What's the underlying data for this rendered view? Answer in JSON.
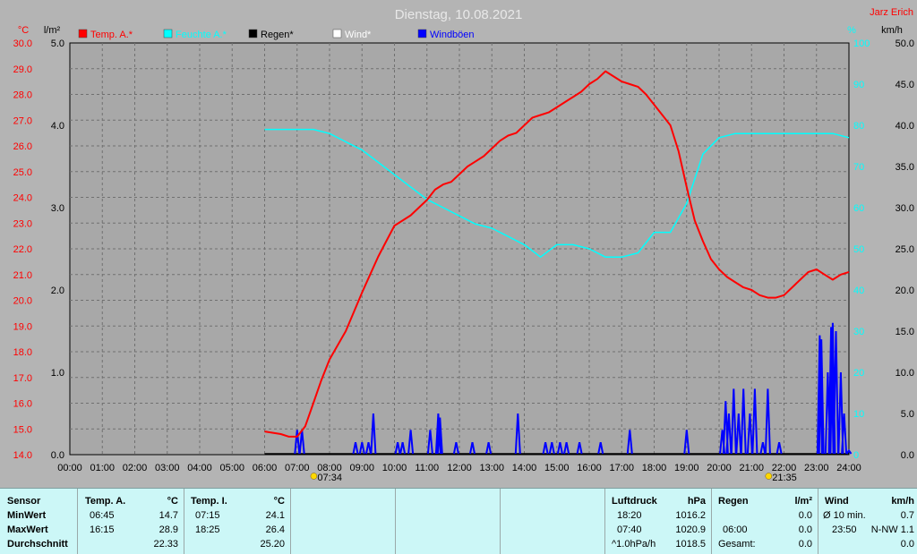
{
  "header": {
    "title": "Dienstag, 10.08.2021",
    "author": "Jarz Erich"
  },
  "legend": [
    {
      "label": "Temp. A.*",
      "color": "#ff0000"
    },
    {
      "label": "Feuchte A.*",
      "color": "#00ffff"
    },
    {
      "label": "Regen*",
      "color": "#000000"
    },
    {
      "label": "Wind*",
      "color": "#ffffff"
    },
    {
      "label": "Windböen",
      "color": "#0000ff"
    }
  ],
  "chart_data": {
    "type": "line",
    "title": "Dienstag, 10.08.2021",
    "x_ticks": [
      "00:00",
      "01:00",
      "02:00",
      "03:00",
      "04:00",
      "05:00",
      "06:00",
      "07:00",
      "08:00",
      "09:00",
      "10:00",
      "11:00",
      "12:00",
      "13:00",
      "14:00",
      "15:00",
      "16:00",
      "17:00",
      "18:00",
      "19:00",
      "20:00",
      "21:00",
      "22:00",
      "23:00",
      "24:00"
    ],
    "grid": true,
    "axes": {
      "temp": {
        "unit": "°C",
        "min": 14.0,
        "max": 30.0,
        "ticks": [
          "14.0",
          "15.0",
          "16.0",
          "17.0",
          "18.0",
          "19.0",
          "20.0",
          "21.0",
          "22.0",
          "23.0",
          "24.0",
          "25.0",
          "26.0",
          "27.0",
          "28.0",
          "29.0",
          "30.0"
        ]
      },
      "rain": {
        "unit": "l/m²",
        "min": 0.0,
        "max": 5.0,
        "ticks": [
          "0.0",
          "1.0",
          "2.0",
          "3.0",
          "4.0",
          "5.0"
        ]
      },
      "humidity": {
        "unit": "%",
        "min": 0,
        "max": 100,
        "ticks": [
          "0",
          "10",
          "20",
          "30",
          "40",
          "50",
          "60",
          "70",
          "80",
          "90",
          "100"
        ]
      },
      "wind": {
        "unit": "km/h",
        "min": 0.0,
        "max": 50.0,
        "ticks": [
          "0.0",
          "5.0",
          "10.0",
          "15.0",
          "20.0",
          "25.0",
          "30.0",
          "35.0",
          "40.0",
          "45.0",
          "50.0"
        ]
      }
    },
    "sun_markers": [
      {
        "time": "07:34",
        "hour": 7.57
      },
      {
        "time": "21:35",
        "hour": 21.58
      }
    ],
    "series": [
      {
        "name": "Temp. A.*",
        "axis": "temp",
        "color": "#ff0000",
        "x": [
          6.0,
          6.5,
          6.75,
          7.0,
          7.25,
          7.5,
          7.75,
          8.0,
          8.5,
          9.0,
          9.25,
          9.5,
          9.75,
          10.0,
          10.25,
          10.5,
          10.75,
          11.0,
          11.25,
          11.5,
          11.75,
          12.0,
          12.25,
          12.5,
          12.75,
          13.0,
          13.25,
          13.5,
          13.75,
          14.0,
          14.25,
          14.5,
          14.75,
          15.0,
          15.25,
          15.5,
          15.75,
          16.0,
          16.25,
          16.5,
          16.75,
          17.0,
          17.25,
          17.5,
          17.75,
          18.0,
          18.25,
          18.5,
          18.75,
          19.0,
          19.25,
          19.5,
          19.75,
          20.0,
          20.25,
          20.5,
          20.75,
          21.0,
          21.25,
          21.5,
          21.75,
          22.0,
          22.25,
          22.5,
          22.75,
          23.0,
          23.25,
          23.5,
          23.75,
          24.0
        ],
        "y": [
          14.9,
          14.8,
          14.7,
          14.7,
          15.1,
          16.0,
          16.9,
          17.7,
          18.8,
          20.3,
          21.0,
          21.7,
          22.3,
          22.9,
          23.1,
          23.3,
          23.6,
          23.9,
          24.3,
          24.5,
          24.6,
          24.9,
          25.2,
          25.4,
          25.6,
          25.9,
          26.2,
          26.4,
          26.5,
          26.8,
          27.1,
          27.2,
          27.3,
          27.5,
          27.7,
          27.9,
          28.1,
          28.4,
          28.6,
          28.9,
          28.7,
          28.5,
          28.4,
          28.3,
          28.0,
          27.6,
          27.2,
          26.8,
          25.8,
          24.4,
          23.1,
          22.3,
          21.6,
          21.2,
          20.9,
          20.7,
          20.5,
          20.4,
          20.2,
          20.1,
          20.1,
          20.2,
          20.5,
          20.8,
          21.1,
          21.2,
          21.0,
          20.8,
          21.0,
          21.1
        ]
      },
      {
        "name": "Feuchte A.*",
        "axis": "humidity",
        "color": "#00ffff",
        "x": [
          6.0,
          6.5,
          7.0,
          7.5,
          8.0,
          8.5,
          9.0,
          9.5,
          10.0,
          10.5,
          11.0,
          11.5,
          12.0,
          12.5,
          13.0,
          13.5,
          14.0,
          14.5,
          15.0,
          15.5,
          16.0,
          16.5,
          17.0,
          17.5,
          18.0,
          18.5,
          19.0,
          19.5,
          20.0,
          20.5,
          21.0,
          21.5,
          22.0,
          22.5,
          23.0,
          23.5,
          24.0
        ],
        "y": [
          79,
          79,
          79,
          79,
          78,
          76,
          74,
          71,
          68,
          65,
          62,
          60,
          58,
          56,
          55,
          53,
          51,
          48,
          51,
          51,
          50,
          48,
          48,
          49,
          54,
          54,
          61,
          73,
          77,
          78,
          78,
          78,
          78,
          78,
          78,
          78,
          77
        ]
      },
      {
        "name": "Windböen",
        "axis": "wind",
        "color": "#0000ff",
        "style": "spikes",
        "x": [
          7.0,
          7.15,
          8.8,
          9.0,
          9.2,
          9.35,
          10.1,
          10.25,
          10.5,
          11.1,
          11.35,
          11.4,
          11.9,
          12.4,
          12.9,
          13.8,
          14.65,
          14.85,
          15.1,
          15.3,
          15.7,
          16.35,
          17.25,
          19.0,
          20.1,
          20.2,
          20.3,
          20.45,
          20.6,
          20.75,
          20.95,
          21.1,
          21.35,
          21.5,
          21.85,
          23.1,
          23.15,
          23.35,
          23.45,
          23.5,
          23.6,
          23.75,
          23.85,
          24.0
        ],
        "y": [
          3.0,
          3.0,
          1.5,
          1.5,
          1.5,
          5.0,
          1.5,
          1.5,
          3.0,
          3.0,
          5.0,
          4.5,
          1.5,
          1.5,
          1.5,
          5.0,
          1.5,
          1.5,
          1.5,
          1.5,
          1.5,
          1.5,
          3.0,
          3.0,
          3.0,
          6.5,
          5.0,
          8.0,
          5.0,
          8.0,
          5.0,
          8.0,
          1.5,
          8.0,
          1.5,
          14.5,
          14.0,
          10.0,
          15.5,
          16.0,
          15.0,
          10.0,
          5.0,
          0.5
        ]
      }
    ]
  },
  "panel": {
    "sensor": {
      "title": "Sensor",
      "min": "MinWert",
      "max": "MaxWert",
      "avg": "Durchschnitt"
    },
    "temp_a": {
      "title": "Temp. A.",
      "unit": "°C",
      "min_time": "06:45",
      "min_val": "14.7",
      "max_time": "16:15",
      "max_val": "28.9",
      "avg_val": "22.33"
    },
    "temp_i": {
      "title": "Temp. I.",
      "unit": "°C",
      "min_time": "07:15",
      "min_val": "24.1",
      "max_time": "18:25",
      "max_val": "26.4",
      "avg_val": "25.20"
    },
    "pressure": {
      "title": "Luftdruck",
      "unit": "hPa",
      "min_time": "18:20",
      "min_val": "1016.2",
      "max_time": "07:40",
      "max_val": "1020.9",
      "avg_label": "^1.0hPa/h",
      "avg_val": "1018.5"
    },
    "rain": {
      "title": "Regen",
      "unit": "l/m²",
      "row1_val": "0.0",
      "row2_time": "06:00",
      "row2_val": "0.0",
      "row3_label": "Gesamt:",
      "row3_val": "0.0"
    },
    "wind": {
      "title": "Wind",
      "unit": "km/h",
      "row1_label": "Ø 10 min.",
      "row1_val": "0.7",
      "row2_time": "23:50",
      "row2_val": "N-NW 1.1",
      "row3_val": "0.0"
    }
  }
}
